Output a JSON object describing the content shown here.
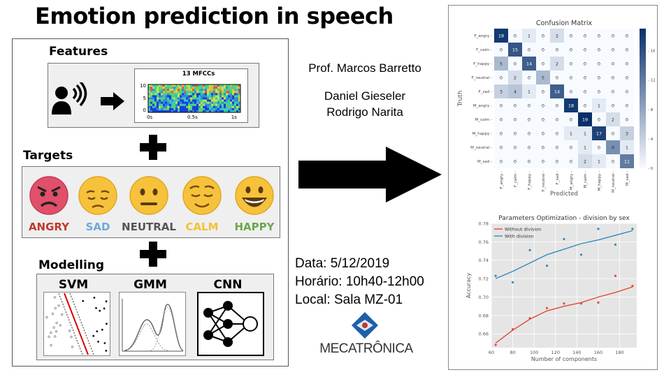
{
  "title": "Emotion prediction in speech",
  "features": {
    "label": "Features",
    "mfcc_title": "13 MFCCs",
    "y_ticks": [
      "10",
      "5",
      "0"
    ],
    "x_ticks": [
      "0s",
      "0.5s",
      "1s"
    ],
    "icons": [
      "speaker-icon",
      "arrow-right-icon"
    ]
  },
  "targets": {
    "label": "Targets",
    "emotions": [
      {
        "label": "ANGRY",
        "color": "#c0392b",
        "icon": "angry-face-icon"
      },
      {
        "label": "SAD",
        "color": "#6fa8dc",
        "icon": "sad-face-icon"
      },
      {
        "label": "NEUTRAL",
        "color": "#555555",
        "icon": "neutral-face-icon"
      },
      {
        "label": "CALM",
        "color": "#f1c232",
        "icon": "calm-face-icon"
      },
      {
        "label": "HAPPY",
        "color": "#6aa84f",
        "icon": "happy-face-icon"
      }
    ]
  },
  "modelling": {
    "label": "Modelling",
    "models": [
      "SVM",
      "GMM",
      "CNN"
    ]
  },
  "people": {
    "professor": "Prof. Marcos Barretto",
    "students": [
      "Daniel Gieseler",
      "Rodrigo Narita"
    ]
  },
  "schedule": {
    "date": "Data: 5/12/2019",
    "time": "Horário: 10h40-12h00",
    "place": "Local: Sala MZ-01"
  },
  "logo": {
    "text": "MECATRÔNICA"
  },
  "confusion": {
    "chart_data": {
      "type": "heatmap",
      "title": "Confusion Matrix",
      "xlabel": "Predicted",
      "ylabel": "Truth",
      "labels": [
        "F_angry",
        "F_calm",
        "F_happy",
        "F_neutral",
        "F_sad",
        "M_angry",
        "M_calm",
        "M_happy",
        "M_neutral",
        "M_sad"
      ],
      "matrix": [
        [
          18,
          0,
          1,
          0,
          2,
          0,
          0,
          0,
          0,
          0
        ],
        [
          0,
          15,
          0,
          0,
          0,
          0,
          0,
          0,
          0,
          0
        ],
        [
          5,
          0,
          14,
          0,
          2,
          0,
          0,
          0,
          0,
          0
        ],
        [
          0,
          2,
          0,
          5,
          0,
          0,
          0,
          0,
          0,
          0
        ],
        [
          3,
          4,
          1,
          0,
          14,
          0,
          0,
          0,
          0,
          0
        ],
        [
          0,
          0,
          0,
          0,
          0,
          18,
          0,
          1,
          0,
          0
        ],
        [
          0,
          0,
          0,
          0,
          0,
          0,
          19,
          0,
          2,
          0
        ],
        [
          0,
          0,
          0,
          0,
          0,
          1,
          1,
          17,
          0,
          3
        ],
        [
          0,
          0,
          0,
          0,
          0,
          0,
          1,
          0,
          9,
          1
        ],
        [
          0,
          0,
          0,
          0,
          0,
          0,
          2,
          1,
          0,
          11
        ]
      ],
      "colorbar_ticks": [
        0,
        4,
        8,
        12,
        16
      ],
      "vmax": 19
    }
  },
  "optimization": {
    "chart_data": {
      "type": "line",
      "title": "Parameters Optimization - division by sex",
      "xlabel": "Number of components",
      "ylabel": "Accuracy",
      "xlim": [
        60,
        196
      ],
      "ylim": [
        0.645,
        0.78
      ],
      "x_ticks": [
        60,
        80,
        100,
        120,
        140,
        160,
        180
      ],
      "y_ticks": [
        0.66,
        0.68,
        0.7,
        0.72,
        0.74,
        0.76,
        0.78
      ],
      "series": [
        {
          "name": "Without division",
          "color": "#e24a33",
          "points": [
            [
              64,
              0.648
            ],
            [
              80,
              0.665
            ],
            [
              96,
              0.677
            ],
            [
              112,
              0.688
            ],
            [
              128,
              0.693
            ],
            [
              144,
              0.693
            ],
            [
              160,
              0.694
            ],
            [
              176,
              0.723
            ],
            [
              192,
              0.712
            ]
          ],
          "fit": [
            [
              64,
              0.65
            ],
            [
              80,
              0.664
            ],
            [
              96,
              0.676
            ],
            [
              112,
              0.685
            ],
            [
              128,
              0.69
            ],
            [
              144,
              0.694
            ],
            [
              160,
              0.7
            ],
            [
              176,
              0.705
            ],
            [
              192,
              0.711
            ]
          ]
        },
        {
          "name": "With division",
          "color": "#348abd",
          "points": [
            [
              64,
              0.723
            ],
            [
              80,
              0.716
            ],
            [
              96,
              0.751
            ],
            [
              112,
              0.734
            ],
            [
              128,
              0.763
            ],
            [
              144,
              0.746
            ],
            [
              160,
              0.774
            ],
            [
              176,
              0.757
            ],
            [
              192,
              0.774
            ]
          ],
          "fit": [
            [
              64,
              0.72
            ],
            [
              80,
              0.728
            ],
            [
              96,
              0.737
            ],
            [
              112,
              0.746
            ],
            [
              128,
              0.752
            ],
            [
              144,
              0.758
            ],
            [
              160,
              0.762
            ],
            [
              176,
              0.767
            ],
            [
              192,
              0.772
            ]
          ]
        }
      ],
      "legend": "top-left"
    }
  }
}
